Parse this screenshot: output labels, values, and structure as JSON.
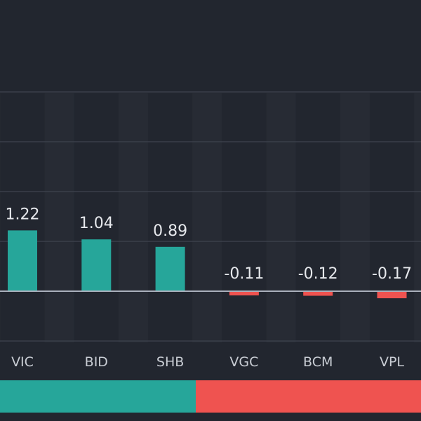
{
  "colors": {
    "background": "#22262f",
    "column_band": "#272b34",
    "grid": "#3a3f4a",
    "zero_line": "#aab0bc",
    "positive": "#26a69a",
    "negative": "#ef5350",
    "label_text": "#e6e8ec",
    "category_text": "#c9cdd4"
  },
  "chart_data": {
    "type": "bar",
    "categories": [
      "VIC",
      "BID",
      "SHB",
      "VGC",
      "BCM",
      "VPL"
    ],
    "values": [
      1.22,
      1.04,
      0.89,
      -0.11,
      -0.12,
      -0.17
    ],
    "value_labels": [
      "1.22",
      "1.04",
      "0.89",
      "-0.11",
      "-0.12",
      "-0.17"
    ],
    "ylim": [
      -1,
      4
    ],
    "grid": true,
    "colors": {
      "positive": "#26a69a",
      "negative": "#ef5350"
    }
  },
  "breadth": {
    "up_fraction": 0.465,
    "colors": {
      "up": "#26a69a",
      "down": "#ef5350"
    }
  }
}
